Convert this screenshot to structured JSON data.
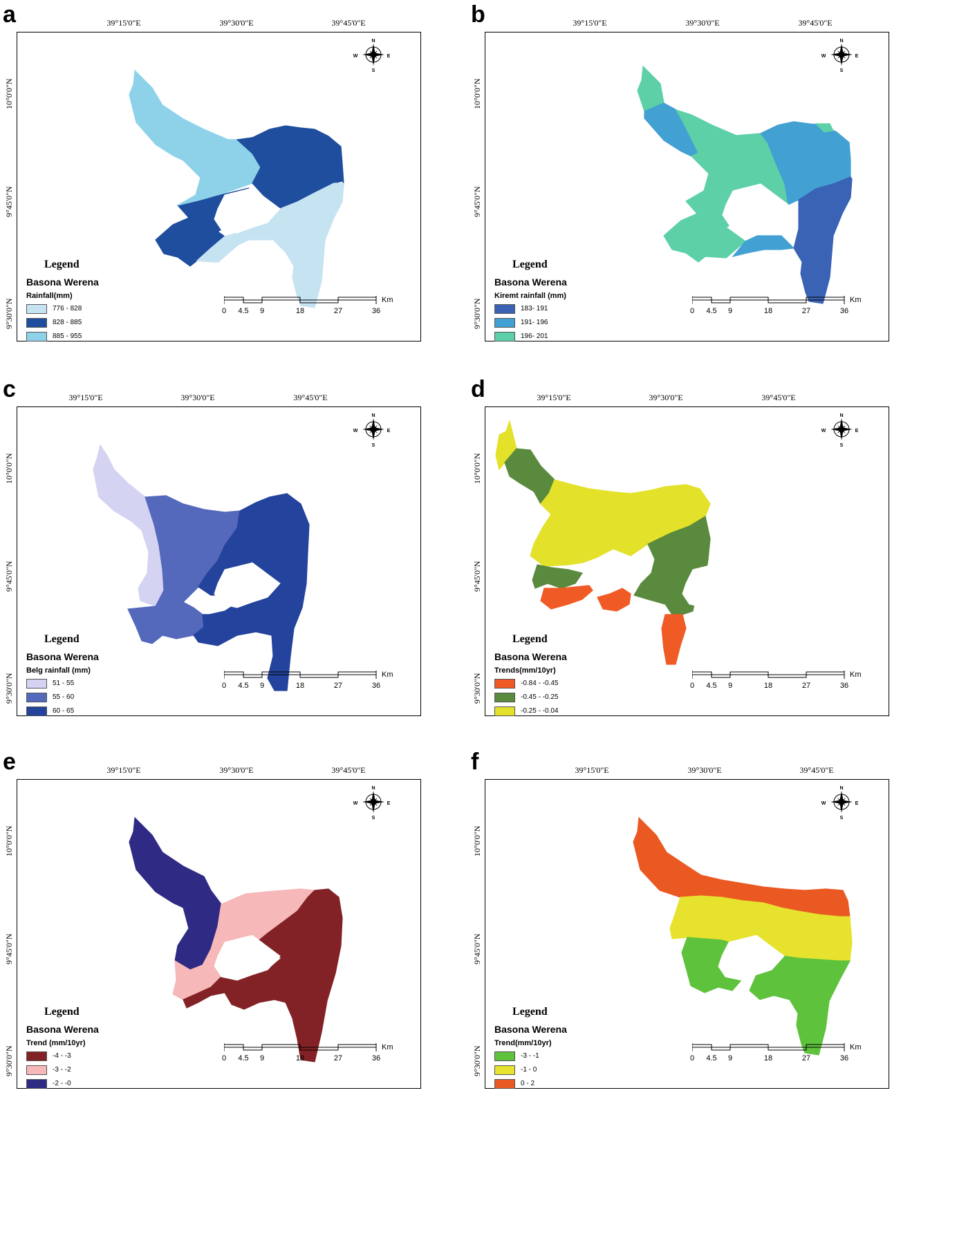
{
  "figure": {
    "panels": [
      {
        "letter": "a",
        "lon_labels": [
          "39°15'0\"E",
          "39°30'0\"E",
          "39°45'0\"E"
        ],
        "lat_labels": [
          "10°0'0\"N",
          "9°45'0\"N",
          "9°30'0\"N"
        ],
        "legend": {
          "title": "Legend",
          "subtitle": "Basona Werena",
          "field": "Rainfall(mm)",
          "classes": [
            {
              "label": "776 - 828",
              "color": "#c6e3f2"
            },
            {
              "label": "828 - 885",
              "color": "#1f4e9e"
            },
            {
              "label": "885 - 955",
              "color": "#8ed2ea"
            }
          ]
        },
        "scale": {
          "ticks": [
            "0",
            "4.5",
            "9",
            "18",
            "27",
            "36"
          ],
          "unit": "Km"
        },
        "compass": {
          "n": "N",
          "s": "S",
          "e": "E",
          "w": "W",
          "icon": "north-arrow-compass-icon"
        }
      },
      {
        "letter": "b",
        "lon_labels": [
          "39°15'0\"E",
          "39°30'0\"E",
          "39°45'0\"E"
        ],
        "lat_labels": [
          "10°0'0\"N",
          "9°45'0\"N",
          "9°30'0\"N"
        ],
        "legend": {
          "title": "Legend",
          "subtitle": "Basona Werena",
          "field": "Kiremt rainfall (mm)",
          "classes": [
            {
              "label": "183- 191",
              "color": "#3a63b5"
            },
            {
              "label": "191- 196",
              "color": "#42a0d2"
            },
            {
              "label": "196- 201",
              "color": "#5dd0a8"
            }
          ]
        },
        "scale": {
          "ticks": [
            "0",
            "4.5",
            "9",
            "18",
            "27",
            "36"
          ],
          "unit": "Km"
        },
        "compass": {
          "n": "N",
          "s": "S",
          "e": "E",
          "w": "W",
          "icon": "north-arrow-compass-icon"
        }
      },
      {
        "letter": "c",
        "lon_labels": [
          "39°15'0\"E",
          "39°30'0\"E",
          "39°45'0\"E"
        ],
        "lat_labels": [
          "10°0'0\"N",
          "9°45'0\"N",
          "9°30'0\"N"
        ],
        "legend": {
          "title": "Legend",
          "subtitle": "Basona Werena",
          "field": "Belg rainfall (mm)",
          "classes": [
            {
              "label": "51 - 55",
              "color": "#d4d3f2"
            },
            {
              "label": "55 - 60",
              "color": "#5468bc"
            },
            {
              "label": "60 - 65",
              "color": "#24439c"
            }
          ]
        },
        "scale": {
          "ticks": [
            "0",
            "4.5",
            "9",
            "18",
            "27",
            "36"
          ],
          "unit": "Km"
        },
        "compass": {
          "n": "N",
          "s": "S",
          "e": "E",
          "w": "W",
          "icon": "north-arrow-compass-icon"
        }
      },
      {
        "letter": "d",
        "lon_labels": [
          "39°15'0\"E",
          "39°30'0\"E",
          "39°45'0\"E"
        ],
        "lat_labels": [
          "10°0'0\"N",
          "9°45'0\"N",
          "9°30'0\"N"
        ],
        "legend": {
          "title": "Legend",
          "subtitle": "Basona Werena",
          "field": "Trends(mm/10yr)",
          "classes": [
            {
              "label": "-0.84 - -0.45",
              "color": "#f05a24"
            },
            {
              "label": "-0.45 - -0.25",
              "color": "#5a8a3e"
            },
            {
              "label": "-0.25 - -0.04",
              "color": "#e3e12a"
            }
          ]
        },
        "scale": {
          "ticks": [
            "0",
            "4.5",
            "9",
            "18",
            "27",
            "36"
          ],
          "unit": "Km"
        },
        "compass": {
          "n": "N",
          "s": "S",
          "e": "E",
          "w": "W",
          "icon": "north-arrow-compass-icon"
        }
      },
      {
        "letter": "e",
        "lon_labels": [
          "39°15'0\"E",
          "39°30'0\"E",
          "39°45'0\"E"
        ],
        "lat_labels": [
          "10°0'0\"N",
          "9°45'0\"N",
          "9°30'0\"N"
        ],
        "legend": {
          "title": "Legend",
          "subtitle": "Basona Werena",
          "field": "Trend (mm/10yr)",
          "classes": [
            {
              "label": "-4 - -3",
              "color": "#832226"
            },
            {
              "label": "-3 - -2",
              "color": "#f6b8b8"
            },
            {
              "label": "-2 - -0",
              "color": "#2f2a84"
            }
          ]
        },
        "scale": {
          "ticks": [
            "0",
            "4.5",
            "9",
            "18",
            "27",
            "36"
          ],
          "unit": "Km"
        },
        "compass": {
          "n": "N",
          "s": "S",
          "e": "E",
          "w": "W",
          "icon": "north-arrow-compass-icon"
        }
      },
      {
        "letter": "f",
        "lon_labels": [
          "39°15'0\"E",
          "39°30'0\"E",
          "39°45'0\"E"
        ],
        "lat_labels": [
          "10°0'0\"N",
          "9°45'0\"N",
          "9°30'0\"N"
        ],
        "legend": {
          "title": "Legend",
          "subtitle": "Basona Werena",
          "field": "Trend(mm/10yr)",
          "classes": [
            {
              "label": "-3 - -1",
              "color": "#5ec23c"
            },
            {
              "label": "-1 - 0",
              "color": "#e6e22e"
            },
            {
              "label": "0 - 2",
              "color": "#ea5922"
            }
          ]
        },
        "scale": {
          "ticks": [
            "0",
            "4.5",
            "9",
            "18",
            "27",
            "36"
          ],
          "unit": "Km"
        },
        "compass": {
          "n": "N",
          "s": "S",
          "e": "E",
          "w": "W",
          "icon": "north-arrow-compass-icon"
        }
      }
    ]
  }
}
